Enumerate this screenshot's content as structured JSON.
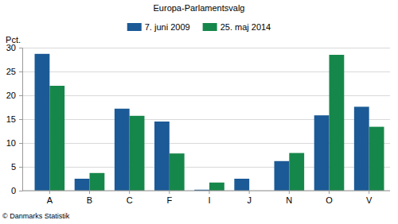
{
  "chart_data": {
    "type": "bar",
    "title": "Europa-Parlamentsvalg",
    "y_label": "Pct.",
    "source": "© Danmarks Statistik",
    "categories": [
      "A",
      "B",
      "C",
      "F",
      "I",
      "J",
      "N",
      "O",
      "V"
    ],
    "series": [
      {
        "name": "7. juni 2009",
        "color": "#1b5a96",
        "values": [
          28.7,
          2.5,
          17.2,
          14.5,
          0.2,
          2.5,
          6.2,
          15.8,
          17.6
        ]
      },
      {
        "name": "25. maj 2014",
        "color": "#16874a",
        "values": [
          22.0,
          3.7,
          15.7,
          7.8,
          1.7,
          null,
          7.9,
          28.5,
          13.4
        ]
      }
    ],
    "ylim": [
      0,
      30
    ],
    "yticks": [
      0,
      5,
      10,
      15,
      20,
      25,
      30
    ],
    "grid": true,
    "legend": "top"
  }
}
